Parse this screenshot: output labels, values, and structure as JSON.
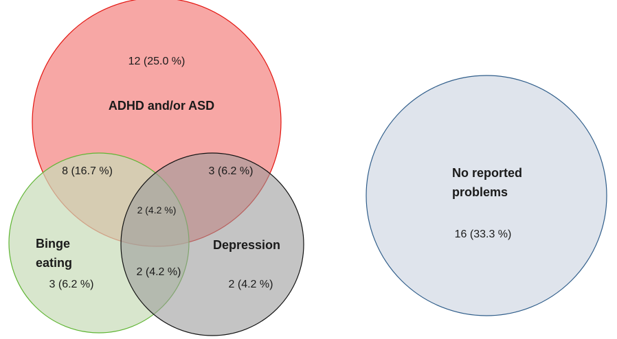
{
  "sets": [
    {
      "id": "adhd",
      "name": "ADHD and/or ASD",
      "fill": "#f4817f",
      "stroke": "#e3140f"
    },
    {
      "id": "binge",
      "name_lines": [
        "Binge",
        "eating"
      ],
      "fill": "#c8dcb8",
      "stroke": "#5fb533"
    },
    {
      "id": "depression",
      "name": "Depression",
      "fill": "#9a9a9a",
      "stroke": "#111111"
    },
    {
      "id": "none",
      "name_lines": [
        "No reported",
        "problems"
      ],
      "fill": "#dfe4ec",
      "stroke": "#2f5d8a"
    }
  ],
  "regions": {
    "adhd_only": "12 (25.0 %)",
    "adhd_binge": "8 (16.7 %)",
    "adhd_depression": "3 (6.2 %)",
    "all_three": "2 (4.2 %)",
    "binge_only": "3 (6.2 %)",
    "binge_depression": "2 (4.2 %)",
    "depression_only": "2 (4.2 %)",
    "none": "16 (33.3 %)"
  }
}
